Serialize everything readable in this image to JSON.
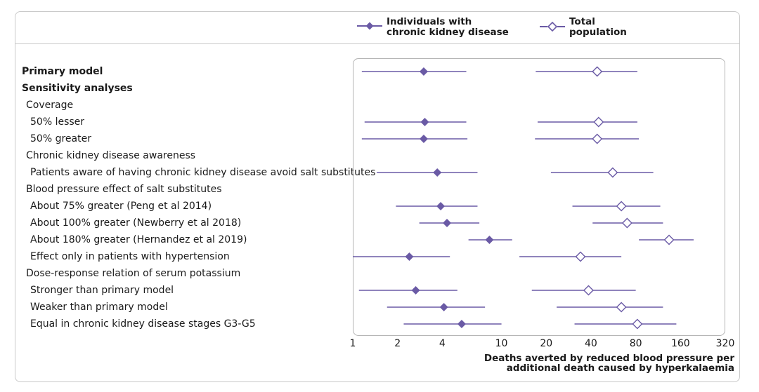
{
  "chart_data": {
    "type": "forest",
    "xscale": "log2",
    "xlim": [
      1,
      320
    ],
    "xticks": [
      1,
      2,
      4,
      10,
      20,
      40,
      80,
      160,
      320
    ],
    "xtick_labels": [
      "1",
      "2",
      "4",
      "10",
      "20",
      "40",
      "80",
      "160",
      "320"
    ],
    "xlabel": "Deaths averted by reduced blood pressure per\nadditional death caused by hyperkalaemia",
    "legend": [
      {
        "name": "Individuals with\nchronic kidney disease",
        "marker": "filled-diamond",
        "color": "#6a5aa5"
      },
      {
        "name": "Total\npopulation",
        "marker": "open-diamond",
        "color": "#6a5aa5"
      }
    ],
    "rows": [
      {
        "label": "Primary model",
        "bold": true,
        "indent": 0,
        "ckd": {
          "est": 3.0,
          "lo": 1.15,
          "hi": 5.8
        },
        "total": {
          "est": 44,
          "lo": 17,
          "hi": 82
        }
      },
      {
        "label": "Sensitivity analyses",
        "bold": true,
        "indent": 0
      },
      {
        "label": "Coverage",
        "bold": false,
        "indent": 1
      },
      {
        "label": "50% lesser",
        "bold": false,
        "indent": 2,
        "ckd": {
          "est": 3.05,
          "lo": 1.2,
          "hi": 5.8
        },
        "total": {
          "est": 45,
          "lo": 17.5,
          "hi": 82
        }
      },
      {
        "label": "50% greater",
        "bold": false,
        "indent": 2,
        "ckd": {
          "est": 3.0,
          "lo": 1.15,
          "hi": 5.9
        },
        "total": {
          "est": 44,
          "lo": 16.8,
          "hi": 84
        }
      },
      {
        "label": "Chronic kidney disease awareness",
        "bold": false,
        "indent": 1
      },
      {
        "label": "Patients aware of having chronic kidney disease avoid salt substitutes",
        "bold": false,
        "indent": 2,
        "ckd": {
          "est": 3.7,
          "lo": 1.45,
          "hi": 6.9
        },
        "total": {
          "est": 56,
          "lo": 21.5,
          "hi": 105
        }
      },
      {
        "label": "Blood pressure effect of salt substitutes",
        "bold": false,
        "indent": 1
      },
      {
        "label": "About 75% greater (Peng et al 2014)",
        "bold": false,
        "indent": 2,
        "ckd": {
          "est": 3.9,
          "lo": 1.95,
          "hi": 6.9
        },
        "total": {
          "est": 64,
          "lo": 30,
          "hi": 117
        }
      },
      {
        "label": "About 100% greater (Newberry et al 2018)",
        "bold": false,
        "indent": 2,
        "ckd": {
          "est": 4.3,
          "lo": 2.8,
          "hi": 7.1
        },
        "total": {
          "est": 70,
          "lo": 41,
          "hi": 122
        }
      },
      {
        "label": "About 180% greater (Hernandez et al 2019)",
        "bold": false,
        "indent": 2,
        "ckd": {
          "est": 8.3,
          "lo": 6.0,
          "hi": 11.8
        },
        "total": {
          "est": 134,
          "lo": 84,
          "hi": 196
        }
      },
      {
        "label": "Effect only in patients with hypertension",
        "bold": false,
        "indent": 2,
        "ckd": {
          "est": 2.4,
          "lo": 1.0,
          "hi": 4.5
        },
        "total": {
          "est": 34,
          "lo": 13.2,
          "hi": 64
        }
      },
      {
        "label": "Dose-response relation of serum potassium",
        "bold": false,
        "indent": 1
      },
      {
        "label": "Stronger than primary model",
        "bold": false,
        "indent": 2,
        "ckd": {
          "est": 2.65,
          "lo": 1.1,
          "hi": 5.05
        },
        "total": {
          "est": 38.5,
          "lo": 16,
          "hi": 80
        }
      },
      {
        "label": "Weaker than primary model",
        "bold": false,
        "indent": 2,
        "ckd": {
          "est": 4.1,
          "lo": 1.7,
          "hi": 7.75
        },
        "total": {
          "est": 64,
          "lo": 23.5,
          "hi": 122
        }
      },
      {
        "label": "Equal in chronic kidney disease stages G3-G5",
        "bold": false,
        "indent": 2,
        "ckd": {
          "est": 5.4,
          "lo": 2.2,
          "hi": 10
        },
        "total": {
          "est": 82,
          "lo": 31,
          "hi": 150
        }
      }
    ]
  }
}
